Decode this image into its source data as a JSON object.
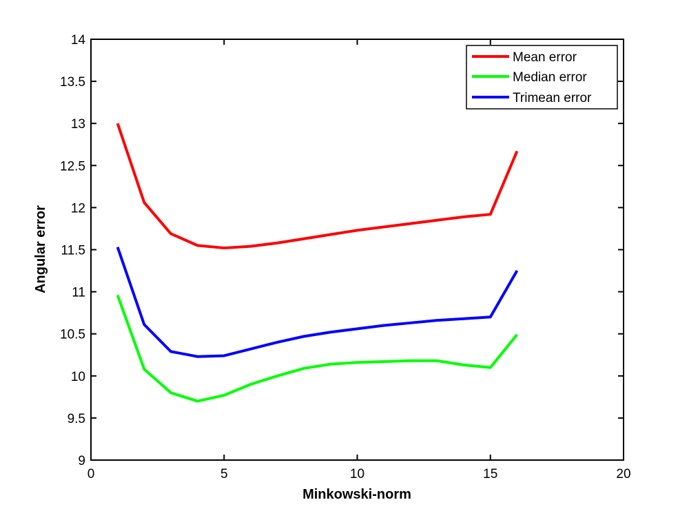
{
  "chart_data": {
    "type": "line",
    "title": "",
    "xlabel": "Minkowski-norm",
    "ylabel": "Angular error",
    "xlim": [
      0,
      20
    ],
    "ylim": [
      9,
      14
    ],
    "xticks": [
      0,
      5,
      10,
      15,
      20
    ],
    "yticks": [
      9,
      9.5,
      10,
      10.5,
      11,
      11.5,
      12,
      12.5,
      13,
      13.5,
      14
    ],
    "xtick_labels": [
      "0",
      "5",
      "10",
      "15",
      "20"
    ],
    "ytick_labels": [
      "9",
      "9.5",
      "10",
      "10.5",
      "11",
      "11.5",
      "12",
      "12.5",
      "13",
      "13.5",
      "14"
    ],
    "grid": false,
    "legend_position": "top-right",
    "x": [
      1,
      2,
      3,
      4,
      5,
      6,
      7,
      8,
      9,
      10,
      11,
      12,
      13,
      14,
      15,
      16
    ],
    "series": [
      {
        "name": "Mean error",
        "color": "#ff0000",
        "values": [
          13.0,
          12.06,
          11.69,
          11.55,
          11.52,
          11.54,
          11.58,
          11.63,
          11.68,
          11.73,
          11.77,
          11.81,
          11.85,
          11.89,
          11.92,
          12.67
        ]
      },
      {
        "name": "Median error",
        "color": "#00ff00",
        "values": [
          10.96,
          10.08,
          9.8,
          9.7,
          9.77,
          9.9,
          10.0,
          10.09,
          10.14,
          10.16,
          10.17,
          10.18,
          10.18,
          10.13,
          10.1,
          10.49
        ]
      },
      {
        "name": "Trimean error",
        "color": "#0000ff",
        "values": [
          11.53,
          10.61,
          10.29,
          10.23,
          10.24,
          10.32,
          10.4,
          10.47,
          10.52,
          10.56,
          10.6,
          10.63,
          10.66,
          10.68,
          10.7,
          11.25
        ]
      }
    ]
  }
}
